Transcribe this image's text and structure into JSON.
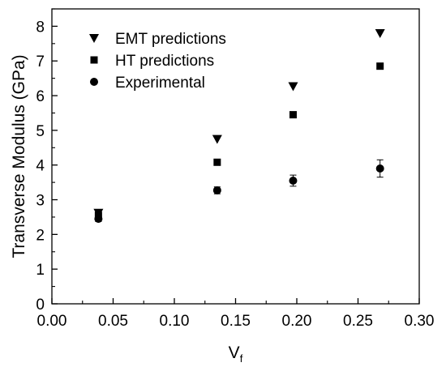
{
  "chart_data": {
    "type": "scatter",
    "title": "",
    "xlabel": "V",
    "xlabel_subscript": "f",
    "ylabel": "Transverse Modulus (GPa)",
    "xlim": [
      0.0,
      0.3
    ],
    "ylim": [
      0,
      8.5
    ],
    "xticks": [
      {
        "value": 0.0,
        "label": "0.00"
      },
      {
        "value": 0.05,
        "label": "0.05"
      },
      {
        "value": 0.1,
        "label": "0.10"
      },
      {
        "value": 0.15,
        "label": "0.15"
      },
      {
        "value": 0.2,
        "label": "0.20"
      },
      {
        "value": 0.25,
        "label": "0.25"
      },
      {
        "value": 0.3,
        "label": "0.30"
      }
    ],
    "yticks": [
      {
        "value": 0,
        "label": "0"
      },
      {
        "value": 1,
        "label": "1"
      },
      {
        "value": 2,
        "label": "2"
      },
      {
        "value": 3,
        "label": "3"
      },
      {
        "value": 4,
        "label": "4"
      },
      {
        "value": 5,
        "label": "5"
      },
      {
        "value": 6,
        "label": "6"
      },
      {
        "value": 7,
        "label": "7"
      },
      {
        "value": 8,
        "label": "8"
      }
    ],
    "grid": false,
    "legend_position": "top-left",
    "series": [
      {
        "name": "EMT predictions",
        "marker": "triangle-down",
        "color": "#000000",
        "x": [
          0.038,
          0.135,
          0.197,
          0.268
        ],
        "y": [
          2.62,
          4.75,
          6.27,
          7.8
        ]
      },
      {
        "name": "HT predictions",
        "marker": "square",
        "color": "#000000",
        "x": [
          0.038,
          0.135,
          0.197,
          0.268
        ],
        "y": [
          2.55,
          4.08,
          5.45,
          6.85
        ]
      },
      {
        "name": "Experimental",
        "marker": "circle",
        "color": "#000000",
        "x": [
          0.038,
          0.135,
          0.197,
          0.268
        ],
        "y": [
          2.45,
          3.27,
          3.55,
          3.9
        ],
        "error": [
          0.08,
          0.1,
          0.16,
          0.25
        ]
      }
    ]
  }
}
